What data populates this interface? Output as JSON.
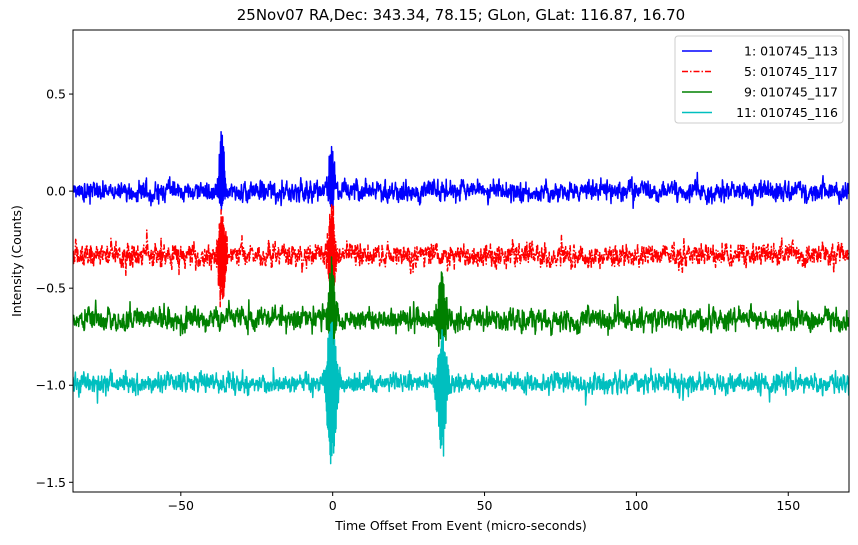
{
  "chart_data": {
    "type": "line",
    "title": "25Nov07 RA,Dec:  343.34,  78.15; GLon, GLat:  116.87,  16.70",
    "xlabel": "Time Offset From Event (micro-seconds)",
    "ylabel": "Intensity (Counts)",
    "xlim": [
      -85.5,
      170
    ],
    "ylim": [
      -1.55,
      0.83
    ],
    "xticks": [
      -50,
      0,
      50,
      100,
      150
    ],
    "xtick_labels": [
      "−50",
      "0",
      "50",
      "100",
      "150"
    ],
    "yticks": [
      0.5,
      0.0,
      -0.5,
      -1.0,
      -1.5
    ],
    "ytick_labels": [
      "0.5",
      "0.0",
      "−0.5",
      "−1.0",
      "−1.5"
    ],
    "grid": false,
    "legend_position": "upper right",
    "series": [
      {
        "name": "1: 010745_113",
        "legend_label": "  1: 010745_113",
        "color": "#0000ff",
        "linestyle": "solid",
        "baseline": 0.0,
        "noise_amplitude": 0.045,
        "seed": 11,
        "spikes": [
          {
            "x": -36.5,
            "peak": 0.33,
            "trough": -0.07,
            "width": 0.8
          },
          {
            "x": -0.3,
            "peak": 0.26,
            "trough": -0.08,
            "width": 0.8
          }
        ]
      },
      {
        "name": "5: 010745_117",
        "legend_label": "  5: 010745_117",
        "color": "#ff0000",
        "linestyle": "dashdot",
        "baseline": -0.33,
        "noise_amplitude": 0.055,
        "seed": 23,
        "spikes": [
          {
            "x": -36.5,
            "peak": -0.05,
            "trough": -0.62,
            "width": 0.9
          },
          {
            "x": -0.3,
            "peak": -0.03,
            "trough": -0.55,
            "width": 0.9
          }
        ]
      },
      {
        "name": "9: 010745_117",
        "legend_label": "  9: 010745_117",
        "color": "#008000",
        "linestyle": "solid",
        "baseline": -0.66,
        "noise_amplitude": 0.05,
        "seed": 37,
        "spikes": [
          {
            "x": -0.3,
            "peak": -0.32,
            "trough": -0.8,
            "width": 0.9
          },
          {
            "x": 36.0,
            "peak": -0.36,
            "trough": -0.78,
            "width": 1.0
          }
        ]
      },
      {
        "name": "11: 010745_116",
        "legend_label": "11: 010745_116",
        "color": "#00bfbf",
        "linestyle": "solid",
        "baseline": -0.99,
        "noise_amplitude": 0.045,
        "seed": 53,
        "spikes": [
          {
            "x": -0.3,
            "peak": -0.63,
            "trough": -1.46,
            "width": 1.2
          },
          {
            "x": 36.0,
            "peak": -0.72,
            "trough": -1.34,
            "width": 1.2
          }
        ]
      }
    ]
  }
}
